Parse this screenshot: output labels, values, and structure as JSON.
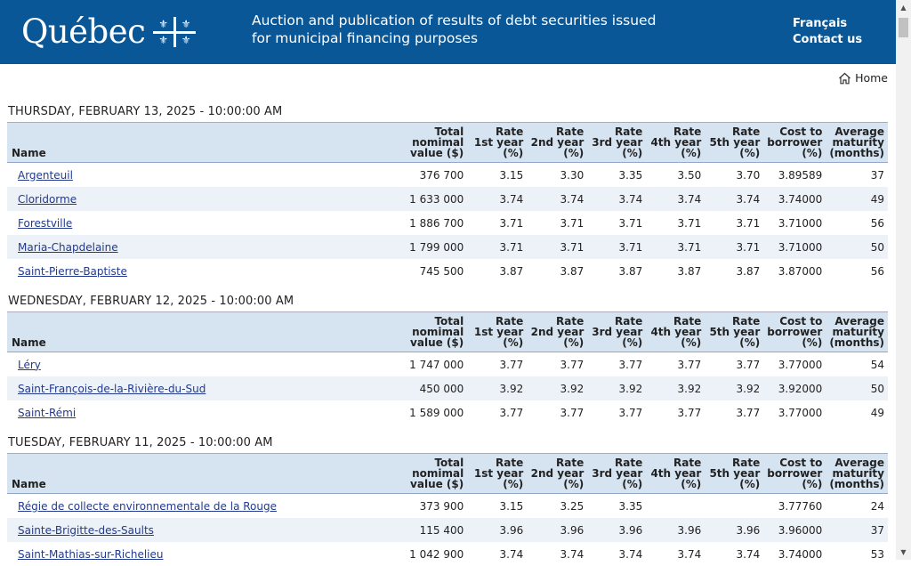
{
  "header": {
    "logo_text": "Québec",
    "title": "Auction and publication of results of debt securities issued for municipal financing purposes",
    "lang_link": "Français",
    "contact_link": "Contact us"
  },
  "nav": {
    "home_label": "Home"
  },
  "columns": {
    "name": "Name",
    "total": [
      "Total",
      "nomimal",
      "value ($)"
    ],
    "rate1": [
      "Rate",
      "1st year",
      "(%)"
    ],
    "rate2": [
      "Rate",
      "2nd year",
      "(%)"
    ],
    "rate3": [
      "Rate",
      "3rd year",
      "(%)"
    ],
    "rate4": [
      "Rate",
      "4th year",
      "(%)"
    ],
    "rate5": [
      "Rate",
      "5th year",
      "(%)"
    ],
    "cost": [
      "Cost to",
      "borrower",
      "(%)"
    ],
    "maturity": [
      "Average",
      "maturity",
      "(months)"
    ]
  },
  "sections": [
    {
      "date": "THURSDAY, FEBRUARY 13, 2025 - 10:00:00 AM",
      "rows": [
        {
          "name": "Argenteuil",
          "total": "376 700",
          "r1": "3.15",
          "r2": "3.30",
          "r3": "3.35",
          "r4": "3.50",
          "r5": "3.70",
          "cost": "3.89589",
          "maturity": "37"
        },
        {
          "name": "Cloridorme",
          "total": "1 633 000",
          "r1": "3.74",
          "r2": "3.74",
          "r3": "3.74",
          "r4": "3.74",
          "r5": "3.74",
          "cost": "3.74000",
          "maturity": "49"
        },
        {
          "name": "Forestville",
          "total": "1 886 700",
          "r1": "3.71",
          "r2": "3.71",
          "r3": "3.71",
          "r4": "3.71",
          "r5": "3.71",
          "cost": "3.71000",
          "maturity": "56"
        },
        {
          "name": "Maria-Chapdelaine",
          "total": "1 799 000",
          "r1": "3.71",
          "r2": "3.71",
          "r3": "3.71",
          "r4": "3.71",
          "r5": "3.71",
          "cost": "3.71000",
          "maturity": "50"
        },
        {
          "name": "Saint-Pierre-Baptiste",
          "total": "745 500",
          "r1": "3.87",
          "r2": "3.87",
          "r3": "3.87",
          "r4": "3.87",
          "r5": "3.87",
          "cost": "3.87000",
          "maturity": "56"
        }
      ]
    },
    {
      "date": "WEDNESDAY, FEBRUARY 12, 2025 - 10:00:00 AM",
      "rows": [
        {
          "name": "Léry",
          "total": "1 747 000",
          "r1": "3.77",
          "r2": "3.77",
          "r3": "3.77",
          "r4": "3.77",
          "r5": "3.77",
          "cost": "3.77000",
          "maturity": "54"
        },
        {
          "name": "Saint-François-de-la-Rivière-du-Sud",
          "total": "450 000",
          "r1": "3.92",
          "r2": "3.92",
          "r3": "3.92",
          "r4": "3.92",
          "r5": "3.92",
          "cost": "3.92000",
          "maturity": "50"
        },
        {
          "name": "Saint-Rémi",
          "total": "1 589 000",
          "r1": "3.77",
          "r2": "3.77",
          "r3": "3.77",
          "r4": "3.77",
          "r5": "3.77",
          "cost": "3.77000",
          "maturity": "49"
        }
      ]
    },
    {
      "date": "TUESDAY, FEBRUARY 11, 2025 - 10:00:00 AM",
      "rows": [
        {
          "name": "Régie de collecte environnementale de la Rouge",
          "total": "373 900",
          "r1": "3.15",
          "r2": "3.25",
          "r3": "3.35",
          "r4": "",
          "r5": "",
          "cost": "3.77760",
          "maturity": "24"
        },
        {
          "name": "Sainte-Brigitte-des-Saults",
          "total": "115 400",
          "r1": "3.96",
          "r2": "3.96",
          "r3": "3.96",
          "r4": "3.96",
          "r5": "3.96",
          "cost": "3.96000",
          "maturity": "37"
        },
        {
          "name": "Saint-Mathias-sur-Richelieu",
          "total": "1 042 900",
          "r1": "3.74",
          "r2": "3.74",
          "r3": "3.74",
          "r4": "3.74",
          "r5": "3.74",
          "cost": "3.74000",
          "maturity": "53"
        }
      ]
    }
  ]
}
